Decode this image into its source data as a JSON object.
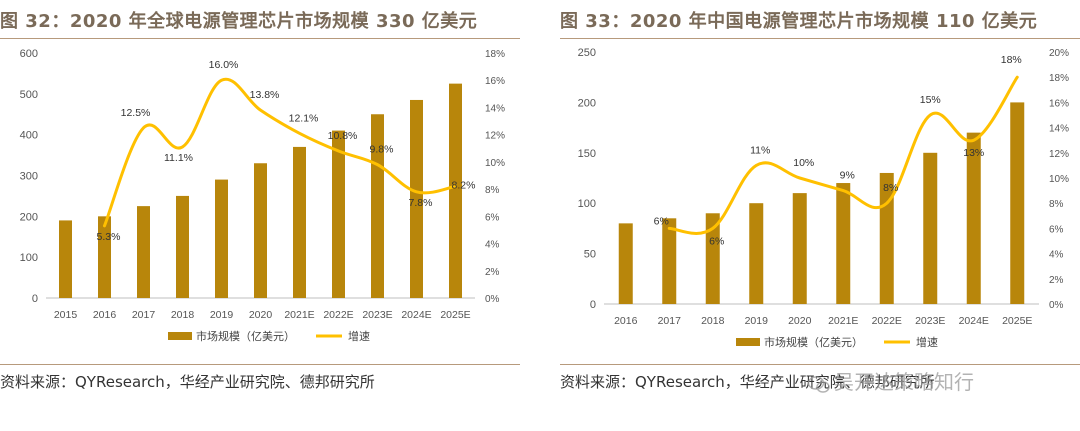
{
  "colors": {
    "bar": "#b8860b",
    "line": "#ffc000",
    "title": "#7a6a58",
    "rule": "#b79a7c"
  },
  "panels": [
    {
      "title": "图 32：2020 年全球电源管理芯片市场规模 330 亿美元",
      "source": "资料来源：QYResearch，华经产业研究院、德邦研究所"
    },
    {
      "title": "图 33：2020 年中国电源管理芯片市场规模 110 亿美元",
      "source": "资料来源：QYResearch，华经产业研究院、德邦研究所"
    }
  ],
  "watermark": "吴开达策略知行",
  "chart_data": [
    {
      "type": "bar",
      "categories": [
        "2015",
        "2016",
        "2017",
        "2018",
        "2019",
        "2020",
        "2021E",
        "2022E",
        "2023E",
        "2024E",
        "2025E"
      ],
      "series": [
        {
          "name": "市场规模（亿美元）",
          "type": "bar",
          "axis": "left",
          "values": [
            190,
            200,
            225,
            250,
            290,
            330,
            370,
            410,
            450,
            485,
            525
          ]
        },
        {
          "name": "增速",
          "type": "line",
          "axis": "right",
          "values": [
            null,
            5.3,
            12.5,
            11.1,
            16.0,
            13.8,
            12.1,
            10.8,
            9.8,
            7.8,
            8.2
          ],
          "labels": [
            "",
            "5.3%",
            "12.5%",
            "11.1%",
            "16.0%",
            "13.8%",
            "12.1%",
            "10.8%",
            "9.8%",
            "7.8%",
            "8.2%"
          ]
        }
      ],
      "ylim_left": [
        0,
        600
      ],
      "yticks_left": [
        "0",
        "100",
        "200",
        "300",
        "400",
        "500",
        "600"
      ],
      "ylim_right": [
        0,
        18
      ],
      "yticks_right": [
        "0%",
        "2%",
        "4%",
        "6%",
        "8%",
        "10%",
        "12%",
        "14%",
        "16%",
        "18%"
      ],
      "legend": [
        "市场规模（亿美元）",
        "增速"
      ],
      "legend_position": "bottom",
      "grid": false
    },
    {
      "type": "bar",
      "categories": [
        "2016",
        "2017",
        "2018",
        "2019",
        "2020",
        "2021E",
        "2022E",
        "2023E",
        "2024E",
        "2025E"
      ],
      "series": [
        {
          "name": "市场规模（亿美元）",
          "type": "bar",
          "axis": "left",
          "values": [
            80,
            85,
            90,
            100,
            110,
            120,
            130,
            150,
            170,
            200
          ]
        },
        {
          "name": "增速",
          "type": "line",
          "axis": "right",
          "values": [
            null,
            6,
            6,
            11,
            10,
            9,
            8,
            15,
            13,
            18
          ],
          "labels": [
            "",
            "6%",
            "6%",
            "11%",
            "10%",
            "9%",
            "8%",
            "15%",
            "13%",
            "18%"
          ]
        }
      ],
      "ylim_left": [
        0,
        250
      ],
      "yticks_left": [
        "0",
        "50",
        "100",
        "150",
        "200",
        "250"
      ],
      "ylim_right": [
        0,
        20
      ],
      "yticks_right": [
        "0%",
        "2%",
        "4%",
        "6%",
        "8%",
        "10%",
        "12%",
        "14%",
        "16%",
        "18%",
        "20%"
      ],
      "legend": [
        "市场规模（亿美元）",
        "增速"
      ],
      "legend_position": "bottom",
      "grid": false
    }
  ]
}
